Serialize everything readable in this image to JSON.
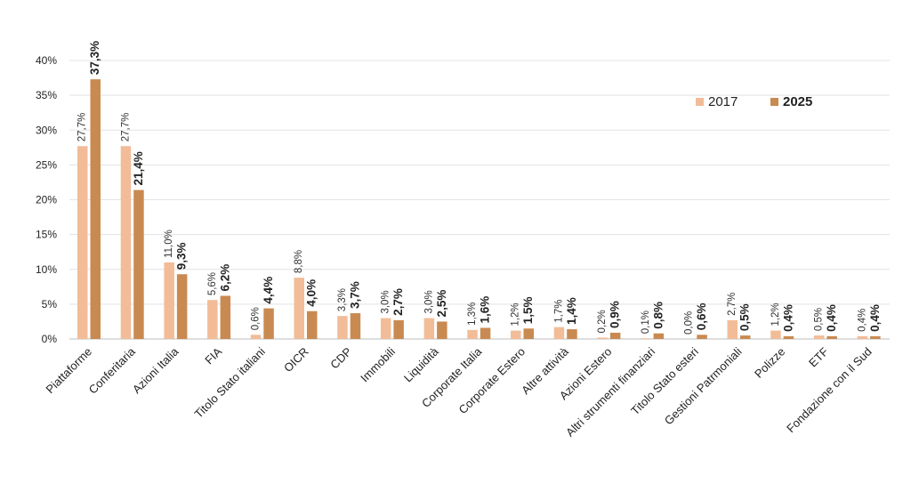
{
  "chart_data": {
    "type": "bar",
    "categories": [
      "Piattaforme",
      "Conferitaria",
      "Azioni Italia",
      "FIA",
      "Titolo Stato italiani",
      "OICR",
      "CDP",
      "Immobili",
      "Liquidità",
      "Corporate Italia",
      "Corporate Estero",
      "Altre attività",
      "Azioni Estero",
      "Altri strumenti finanziari",
      "Titolo Stato esteri",
      "Gestioni Patrmoniali",
      "Polizze",
      "ETF",
      "Fondazione con il Sud"
    ],
    "series": [
      {
        "name": "2017",
        "color": "#f2bc98",
        "values": [
          27.7,
          27.7,
          11.0,
          5.6,
          0.6,
          8.8,
          3.3,
          3.0,
          3.0,
          1.3,
          1.2,
          1.7,
          0.2,
          0.1,
          0.0,
          2.7,
          1.2,
          0.5,
          0.4
        ],
        "labels": [
          "27,7%",
          "27,7%",
          "11,0%",
          "5,6%",
          "0,6%",
          "8,8%",
          "3,3%",
          "3,0%",
          "3,0%",
          "1,3%",
          "1,2%",
          "1,7%",
          "0,2%",
          "0,1%",
          "0,0%",
          "2,7%",
          "1,2%",
          "0,5%",
          "0,4%"
        ]
      },
      {
        "name": "2025",
        "color": "#c98a51",
        "values": [
          37.3,
          21.4,
          9.3,
          6.2,
          4.4,
          4.0,
          3.7,
          2.7,
          2.5,
          1.6,
          1.5,
          1.4,
          0.9,
          0.8,
          0.6,
          0.5,
          0.4,
          0.4,
          0.4
        ],
        "labels": [
          "37,3%",
          "21,4%",
          "9,3%",
          "6,2%",
          "4,4%",
          "4,0%",
          "3,7%",
          "2,7%",
          "2,5%",
          "1,6%",
          "1,5%",
          "1,4%",
          "0,9%",
          "0,8%",
          "0,6%",
          "0,5%",
          "0,4%",
          "0,4%",
          "0,4%"
        ]
      }
    ],
    "yticks": [
      "0%",
      "5%",
      "10%",
      "15%",
      "20%",
      "25%",
      "30%",
      "35%",
      "40%"
    ],
    "ylim": [
      0,
      40
    ],
    "grid": true,
    "legend": "top-right"
  }
}
